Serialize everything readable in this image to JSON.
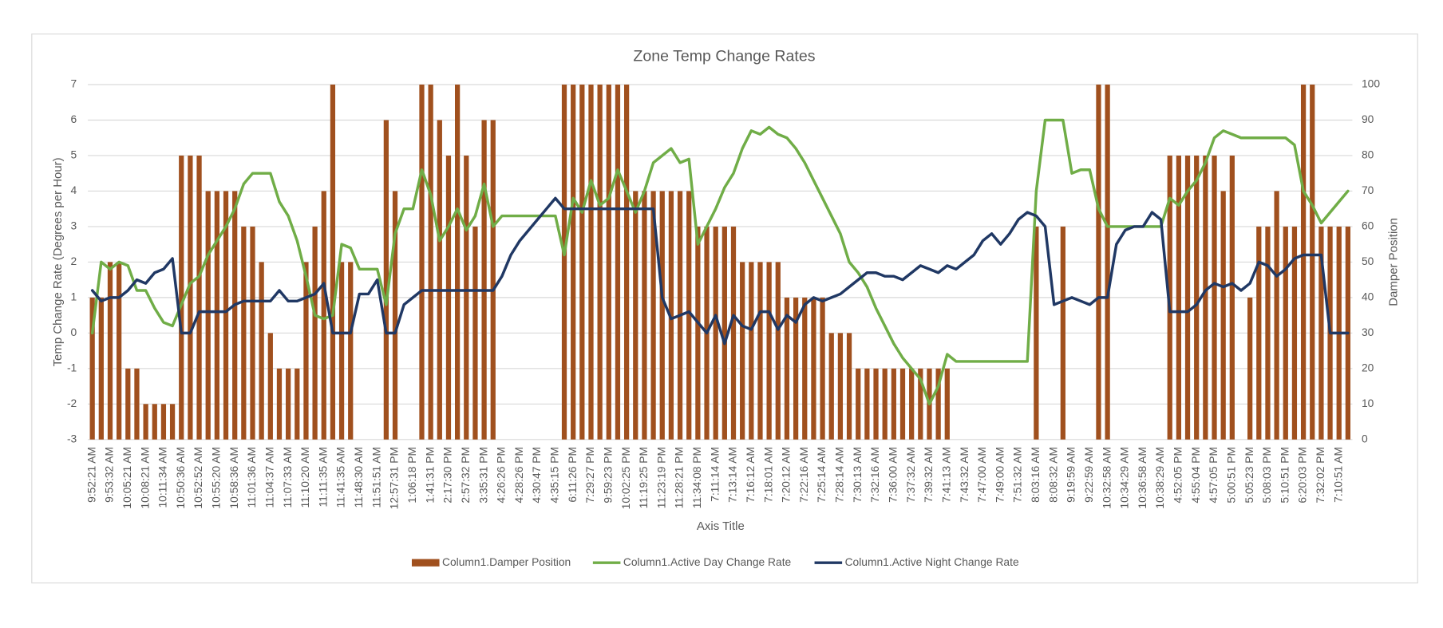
{
  "chart_data": {
    "type": "combo",
    "title": "Zone Temp Change Rates",
    "x_label": "Axis Title",
    "y_label": "Temp Change Rate (Degrees per Hour)",
    "y2_label": "Damper Position",
    "grid": true,
    "legend": "bottom",
    "ylim": [
      -3,
      7
    ],
    "yticks": [
      -3,
      -2,
      -1,
      0,
      1,
      2,
      3,
      4,
      5,
      6,
      7
    ],
    "y2lim": [
      0,
      100
    ],
    "y2ticks": [
      0,
      10,
      20,
      30,
      40,
      50,
      60,
      70,
      80,
      90,
      100
    ],
    "categories": [
      "9:52:21 AM",
      null,
      "9:53:32 AM",
      null,
      "10:05:21 AM",
      null,
      "10:08:21 AM",
      null,
      "10:11:34 AM",
      null,
      "10:50:36 AM",
      null,
      "10:52:52 AM",
      null,
      "10:55:20 AM",
      null,
      "10:58:36 AM",
      null,
      "11:01:36 AM",
      null,
      "11:04:37 AM",
      null,
      "11:07:33 AM",
      null,
      "11:10:20 AM",
      null,
      "11:11:35 AM",
      null,
      "11:41:35 AM",
      null,
      "11:48:30 AM",
      null,
      "11:51:51 AM",
      null,
      "12:57:31 PM",
      null,
      "1:06:18 PM",
      null,
      "1:41:31 PM",
      null,
      "2:17:30 PM",
      null,
      "2:57:32 PM",
      null,
      "3:35:31 PM",
      null,
      "4:26:26 PM",
      null,
      "4:28:26 PM",
      null,
      "4:30:47 PM",
      null,
      "4:35:15 PM",
      null,
      "6:11:26 PM",
      null,
      "7:29:27 PM",
      null,
      "9:59:23 PM",
      null,
      "10:02:25 PM",
      null,
      "11:19:25 PM",
      null,
      "11:23:19 PM",
      null,
      "11:28:21 PM",
      null,
      "11:34:08 PM",
      null,
      "7:11:14 AM",
      null,
      "7:13:14 AM",
      null,
      "7:16:12 AM",
      null,
      "7:18:01 AM",
      null,
      "7:20:12 AM",
      null,
      "7:22:16 AM",
      null,
      "7:25:14 AM",
      null,
      "7:28:14 AM",
      null,
      "7:30:13 AM",
      null,
      "7:32:16 AM",
      null,
      "7:36:00 AM",
      null,
      "7:37:32 AM",
      null,
      "7:39:32 AM",
      null,
      "7:41:13 AM",
      null,
      "7:43:32 AM",
      null,
      "7:47:00 AM",
      null,
      "7:49:00 AM",
      null,
      "7:51:32 AM",
      null,
      "8:03:16 AM",
      null,
      "8:08:32 AM",
      null,
      "9:19:59 AM",
      null,
      "9:22:59 AM",
      null,
      "10:32:58 AM",
      null,
      "10:34:29 AM",
      null,
      "10:36:58 AM",
      null,
      "10:38:29 AM",
      null,
      "4:52:05 PM",
      null,
      "4:55:04 PM",
      null,
      "4:57:05 PM",
      null,
      "5:00:51 PM",
      null,
      "5:05:23 PM",
      null,
      "5:08:03 PM",
      null,
      "5:10:51 PM",
      null,
      "6:20:03 PM",
      null,
      "7:32:02 PM",
      null,
      "7:10:51 AM",
      null
    ],
    "series": [
      {
        "name": "Column1.Damper Position",
        "type": "bar",
        "axis": "y2",
        "color": "#a0501e",
        "values": [
          40,
          40,
          50,
          50,
          20,
          20,
          10,
          10,
          10,
          10,
          80,
          80,
          80,
          70,
          70,
          70,
          70,
          60,
          60,
          50,
          30,
          20,
          20,
          20,
          50,
          60,
          70,
          100,
          50,
          50,
          0,
          0,
          0,
          90,
          70,
          0,
          0,
          100,
          100,
          90,
          80,
          100,
          80,
          60,
          90,
          90,
          0,
          0,
          0,
          0,
          0,
          0,
          0,
          100,
          100,
          100,
          100,
          100,
          100,
          100,
          100,
          70,
          70,
          70,
          70,
          70,
          70,
          70,
          60,
          60,
          60,
          60,
          60,
          50,
          50,
          50,
          50,
          50,
          40,
          40,
          40,
          40,
          40,
          30,
          30,
          30,
          20,
          20,
          20,
          20,
          20,
          20,
          20,
          20,
          20,
          20,
          20,
          0,
          0,
          0,
          0,
          0,
          0,
          0,
          0,
          0,
          60,
          0,
          0,
          60,
          0,
          0,
          0,
          100,
          100,
          0,
          0,
          0,
          0,
          0,
          0,
          80,
          80,
          80,
          80,
          80,
          80,
          70,
          80,
          0,
          40,
          60,
          60,
          70,
          60,
          60,
          100,
          100,
          60,
          60,
          60,
          60
        ]
      },
      {
        "name": "Column1.Active Day Change Rate",
        "type": "line",
        "color": "#70ad47",
        "values": [
          0,
          2,
          1.8,
          2,
          1.9,
          1.2,
          1.2,
          0.7,
          0.3,
          0.2,
          0.8,
          1.4,
          1.6,
          2.2,
          2.6,
          3,
          3.5,
          4.2,
          4.5,
          4.5,
          4.5,
          3.7,
          3.3,
          2.6,
          1.6,
          0.5,
          0.4,
          0.5,
          2.5,
          2.4,
          1.8,
          1.8,
          1.8,
          0.8,
          2.8,
          3.5,
          3.5,
          4.6,
          3.9,
          2.6,
          3,
          3.5,
          2.9,
          3.3,
          4.2,
          3,
          3.3,
          3.3,
          3.3,
          3.3,
          3.3,
          3.3,
          3.3,
          2.2,
          3.8,
          3.4,
          4.3,
          3.6,
          3.8,
          4.6,
          4,
          3.4,
          4,
          4.8,
          5,
          5.2,
          4.8,
          4.9,
          2.5,
          3,
          3.5,
          4.1,
          4.5,
          5.2,
          5.7,
          5.6,
          5.8,
          5.6,
          5.5,
          5.2,
          4.8,
          4.3,
          3.8,
          3.3,
          2.8,
          2,
          1.7,
          1.3,
          0.7,
          0.2,
          -0.3,
          -0.7,
          -1,
          -1.3,
          -2,
          -1.5,
          -0.6,
          -0.8,
          -0.8,
          -0.8,
          -0.8,
          -0.8,
          -0.8,
          -0.8,
          -0.8,
          -0.8,
          4,
          6,
          6,
          6,
          4.5,
          4.6,
          4.6,
          3.5,
          3,
          3,
          3,
          3,
          3,
          3,
          3,
          3.8,
          3.6,
          4,
          4.3,
          4.8,
          5.5,
          5.7,
          5.6,
          5.5,
          5.5,
          5.5,
          5.5,
          5.5,
          5.5,
          5.3,
          4,
          3.6,
          3.1,
          3.4,
          3.7,
          4
        ]
      },
      {
        "name": "Column1.Active Night Change Rate",
        "type": "line",
        "color": "#203864",
        "values": [
          1.2,
          0.9,
          1,
          1,
          1.2,
          1.5,
          1.4,
          1.7,
          1.8,
          2.1,
          0,
          0,
          0.6,
          0.6,
          0.6,
          0.6,
          0.8,
          0.9,
          0.9,
          0.9,
          0.9,
          1.2,
          0.9,
          0.9,
          1,
          1.1,
          1.4,
          0,
          0,
          0,
          1.1,
          1.1,
          1.5,
          0,
          0,
          0.8,
          1,
          1.2,
          1.2,
          1.2,
          1.2,
          1.2,
          1.2,
          1.2,
          1.2,
          1.2,
          1.6,
          2.2,
          2.6,
          2.9,
          3.2,
          3.5,
          3.8,
          3.5,
          3.5,
          3.5,
          3.5,
          3.5,
          3.5,
          3.5,
          3.5,
          3.5,
          3.5,
          3.5,
          1,
          0.4,
          0.5,
          0.6,
          0.3,
          0,
          0.5,
          -0.3,
          0.5,
          0.2,
          0.1,
          0.6,
          0.6,
          0.1,
          0.5,
          0.3,
          0.8,
          1,
          0.9,
          1,
          1.1,
          1.3,
          1.5,
          1.7,
          1.7,
          1.6,
          1.6,
          1.5,
          1.7,
          1.9,
          1.8,
          1.7,
          1.9,
          1.8,
          2,
          2.2,
          2.6,
          2.8,
          2.5,
          2.8,
          3.2,
          3.4,
          3.3,
          3,
          0.8,
          0.9,
          1,
          0.9,
          0.8,
          1,
          1,
          2.5,
          2.9,
          3,
          3,
          3.4,
          3.2,
          0.6,
          0.6,
          0.6,
          0.8,
          1.2,
          1.4,
          1.3,
          1.4,
          1.2,
          1.4,
          2,
          1.9,
          1.6,
          1.8,
          2.1,
          2.2,
          2.2,
          2.2,
          0,
          0,
          0
        ]
      }
    ]
  }
}
